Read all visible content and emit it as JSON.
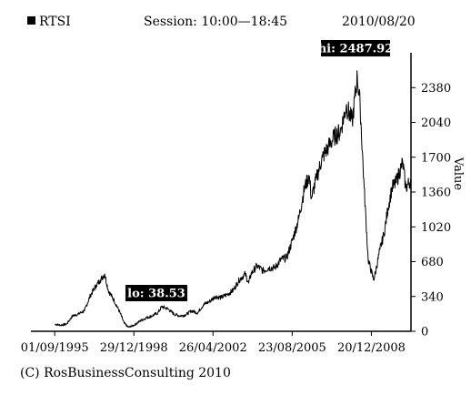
{
  "header": {
    "symbol": "RTSI",
    "session": "Session: 10:00—18:45",
    "date": "2010/08/20"
  },
  "copyright": "(C) RosBusinessConsulting 2010",
  "chart_data": {
    "type": "line",
    "title": "RTSI",
    "xlabel": "",
    "ylabel": "Value",
    "x_ticks": [
      "01/09/1995",
      "29/12/1998",
      "26/04/2002",
      "23/08/2005",
      "20/12/2008"
    ],
    "y_ticks": [
      0,
      340,
      680,
      1020,
      1360,
      1700,
      2040,
      2380
    ],
    "ylim": [
      0,
      2720
    ],
    "xlim": [
      "1994-09-01",
      "2010-08-20"
    ],
    "high": {
      "label": "hi: 2487.92",
      "date": "2008-05-19",
      "value": 2487.92
    },
    "low": {
      "label": "lo: 38.53",
      "date": "1998-10-05",
      "value": 38.53
    },
    "grid": false,
    "legend": "none",
    "line_color": "#000000",
    "series": [
      {
        "x": [
          "1995-09-01",
          "1995-12-01",
          "1996-03-01",
          "1996-06-01",
          "1996-09-01",
          "1996-12-01",
          "1997-03-01",
          "1997-06-01",
          "1997-08-01",
          "1997-10-06",
          "1997-12-01",
          "1998-03-01",
          "1998-06-01",
          "1998-08-01",
          "1998-10-05",
          "1999-01-01",
          "1999-04-01",
          "1999-07-01",
          "1999-10-01",
          "2000-01-01",
          "2000-03-01",
          "2000-06-01",
          "2000-09-01",
          "2000-12-01",
          "2001-03-01",
          "2001-06-01",
          "2001-09-01",
          "2001-12-01",
          "2002-03-01",
          "2002-06-01",
          "2002-09-01",
          "2002-12-01",
          "2003-03-01",
          "2003-06-01",
          "2003-09-01",
          "2003-10-25",
          "2003-12-01",
          "2004-03-01",
          "2004-06-01",
          "2004-09-01",
          "2004-12-01",
          "2005-03-01",
          "2005-06-01",
          "2005-09-01",
          "2005-12-01",
          "2006-03-01",
          "2006-05-10",
          "2006-06-15",
          "2006-09-01",
          "2006-12-01",
          "2007-03-01",
          "2007-06-01",
          "2007-09-01",
          "2007-12-01",
          "2008-03-01",
          "2008-05-19",
          "2008-07-01",
          "2008-09-01",
          "2008-11-01",
          "2009-01-23",
          "2009-03-01",
          "2009-05-01",
          "2009-07-01",
          "2009-09-01",
          "2009-11-01",
          "2010-01-01",
          "2010-04-15",
          "2010-06-01",
          "2010-08-20"
        ],
        "values": [
          70,
          60,
          70,
          150,
          170,
          200,
          350,
          450,
          500,
          560,
          400,
          300,
          180,
          80,
          38.53,
          60,
          100,
          130,
          150,
          180,
          240,
          220,
          170,
          150,
          160,
          200,
          180,
          260,
          290,
          340,
          330,
          360,
          400,
          500,
          560,
          470,
          560,
          640,
          590,
          620,
          620,
          700,
          720,
          900,
          1100,
          1400,
          1520,
          1300,
          1500,
          1700,
          1800,
          1900,
          1950,
          2200,
          2050,
          2487.92,
          2200,
          1400,
          700,
          500,
          600,
          800,
          950,
          1200,
          1400,
          1450,
          1650,
          1400,
          1480
        ]
      }
    ]
  }
}
